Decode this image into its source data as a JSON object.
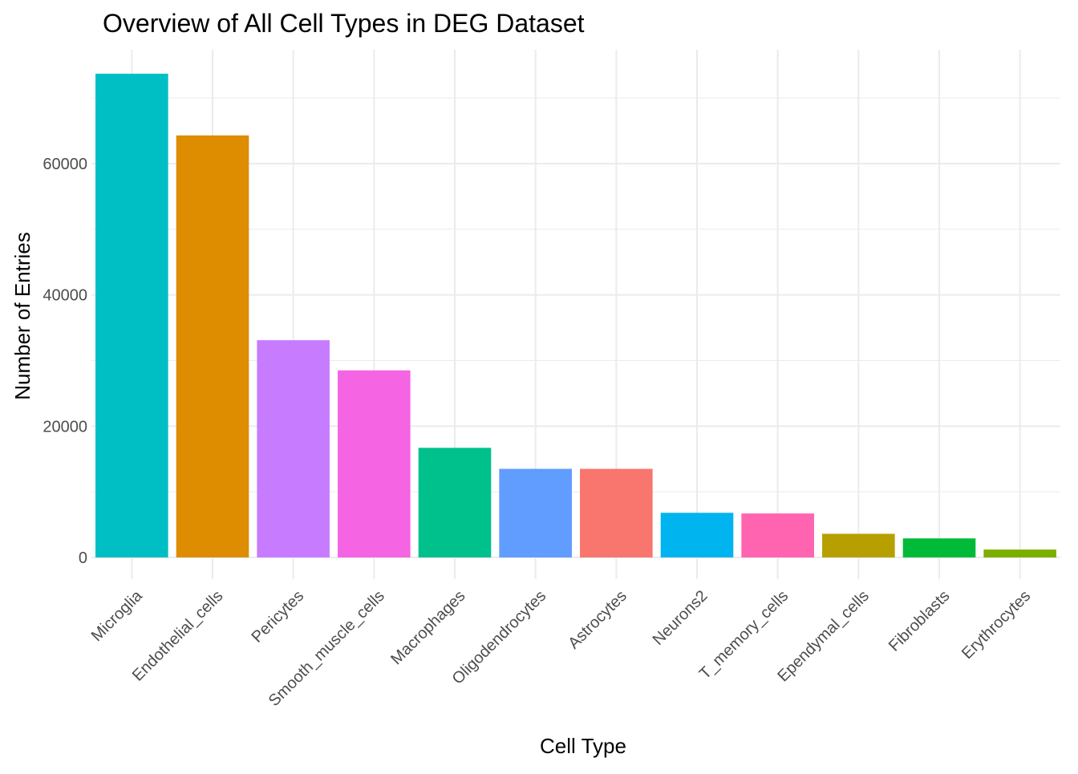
{
  "chart_data": {
    "type": "bar",
    "title": "Overview of All Cell Types in DEG Dataset",
    "xlabel": "Cell Type",
    "ylabel": "Number of Entries",
    "categories": [
      "Microglia",
      "Endothelial_cells",
      "Pericytes",
      "Smooth_muscle_cells",
      "Macrophages",
      "Oligodendrocytes",
      "Astrocytes",
      "Neurons2",
      "T_memory_cells",
      "Ependymal_cells",
      "Fibroblasts",
      "Erythrocytes"
    ],
    "values": [
      73700,
      64300,
      33100,
      28500,
      16700,
      13500,
      13500,
      6800,
      6700,
      3600,
      2900,
      1200
    ],
    "colors": [
      "#00BFC4",
      "#DE8C00",
      "#C77CFF",
      "#F564E3",
      "#00C08B",
      "#619CFF",
      "#F8766D",
      "#00B4EF",
      "#FF64B0",
      "#B79F00",
      "#00BA38",
      "#7CAE00"
    ],
    "ylim": [
      0,
      77000
    ],
    "yticks": [
      0,
      20000,
      40000,
      60000
    ],
    "ytick_labels": [
      "0",
      "20000",
      "40000",
      "60000"
    ],
    "grid": true,
    "legend": "none",
    "theme": "minimal"
  }
}
